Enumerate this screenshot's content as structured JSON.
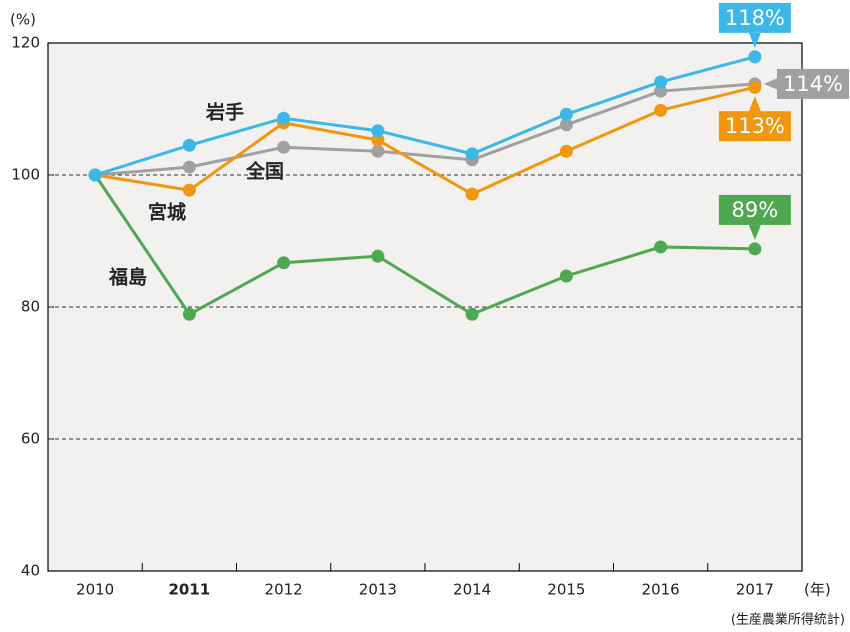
{
  "chart_data": {
    "type": "line",
    "y_label": "(%)",
    "x_unit": "(年)",
    "source": "(生産農業所得統計)",
    "categories": [
      "2010",
      "2011",
      "2012",
      "2013",
      "2014",
      "2015",
      "2016",
      "2017"
    ],
    "emphasized_categories": [
      1
    ],
    "ylim": [
      40,
      120
    ],
    "yticks": [
      40,
      60,
      80,
      100,
      120
    ],
    "grid": true,
    "series": [
      {
        "name": "岩手",
        "color": "#3bb8e8",
        "label_side": "top",
        "values": [
          100,
          104.5,
          108.6,
          106.7,
          103.2,
          109.2,
          114.1,
          117.9
        ],
        "value_labels": [
          null,
          null,
          null,
          null,
          null,
          null,
          null,
          "118%"
        ]
      },
      {
        "name": "宮城",
        "color": "#f0960f",
        "label_side": "bottom",
        "values": [
          100,
          97.7,
          107.9,
          105.3,
          97.1,
          103.6,
          109.8,
          113.3
        ],
        "value_labels": [
          null,
          null,
          null,
          null,
          null,
          null,
          null,
          "113%"
        ]
      },
      {
        "name": "全国",
        "color": "#a0a0a0",
        "label_side": "right",
        "values": [
          100,
          101.2,
          104.2,
          103.6,
          102.3,
          107.6,
          112.7,
          113.8
        ],
        "value_labels": [
          null,
          null,
          null,
          null,
          null,
          null,
          null,
          "114%"
        ]
      },
      {
        "name": "福島",
        "color": "#4ea850",
        "label_side": "top",
        "values": [
          100,
          78.9,
          86.7,
          87.7,
          78.9,
          84.7,
          89.1,
          88.8
        ],
        "value_labels": [
          null,
          null,
          null,
          null,
          null,
          null,
          null,
          "89%"
        ]
      }
    ]
  }
}
